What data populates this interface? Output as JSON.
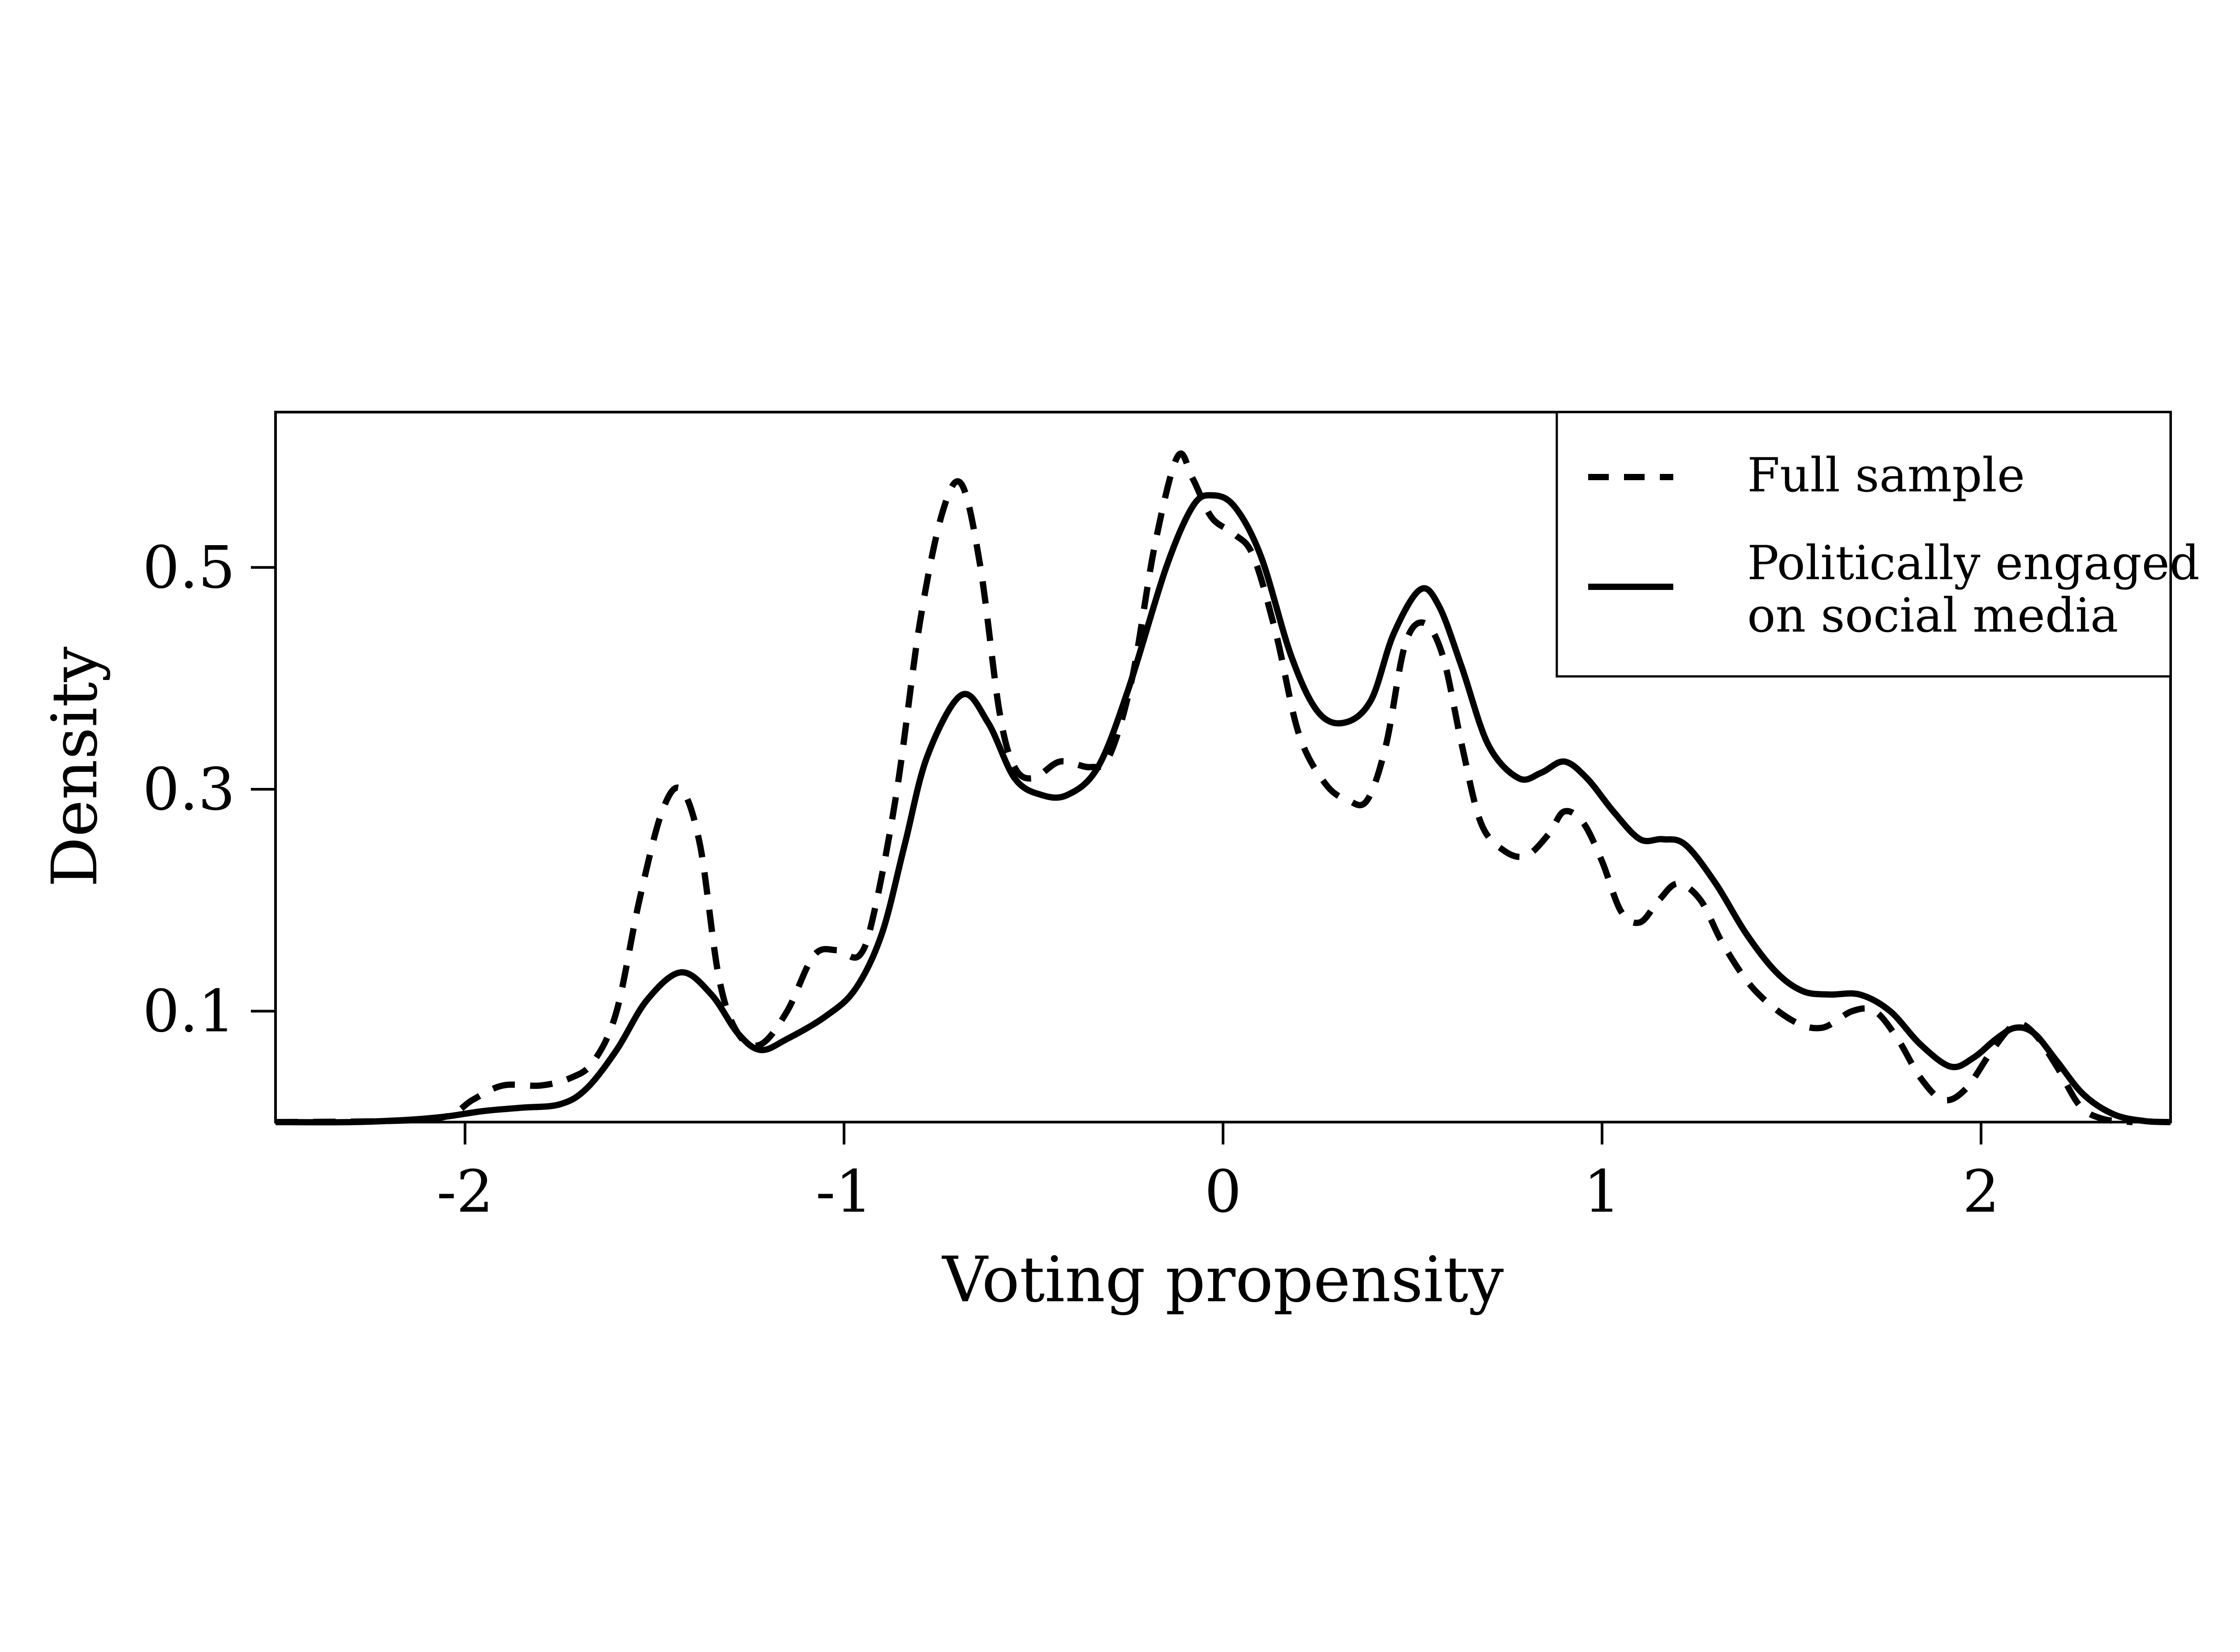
{
  "chart_data": {
    "type": "line",
    "xlabel": "Voting propensity",
    "ylabel": "Density",
    "xlim": [
      -2.5,
      2.5
    ],
    "ylim": [
      0.0,
      0.64
    ],
    "xticks": [
      -2,
      -1,
      0,
      1,
      2
    ],
    "xtick_labels": [
      "-2",
      "-1",
      "0",
      "1",
      "2"
    ],
    "yticks": [
      0.1,
      0.3,
      0.5
    ],
    "ytick_labels": [
      "0.1",
      "0.3",
      "0.5"
    ],
    "grid": false,
    "legend_position": "top-right",
    "series": [
      {
        "name": "Full sample",
        "style": "dashed",
        "color": "#000000",
        "points": [
          [
            -2.5,
            0.0
          ],
          [
            -2.2,
            0.001
          ],
          [
            -2.05,
            0.005
          ],
          [
            -1.98,
            0.02
          ],
          [
            -1.9,
            0.033
          ],
          [
            -1.8,
            0.033
          ],
          [
            -1.72,
            0.04
          ],
          [
            -1.66,
            0.055
          ],
          [
            -1.6,
            0.1
          ],
          [
            -1.54,
            0.2
          ],
          [
            -1.48,
            0.28
          ],
          [
            -1.43,
            0.3
          ],
          [
            -1.38,
            0.25
          ],
          [
            -1.33,
            0.13
          ],
          [
            -1.28,
            0.08
          ],
          [
            -1.22,
            0.07
          ],
          [
            -1.15,
            0.1
          ],
          [
            -1.08,
            0.15
          ],
          [
            -1.02,
            0.155
          ],
          [
            -0.96,
            0.15
          ],
          [
            -0.92,
            0.19
          ],
          [
            -0.86,
            0.3
          ],
          [
            -0.8,
            0.45
          ],
          [
            -0.74,
            0.55
          ],
          [
            -0.69,
            0.575
          ],
          [
            -0.64,
            0.5
          ],
          [
            -0.59,
            0.37
          ],
          [
            -0.55,
            0.32
          ],
          [
            -0.5,
            0.31
          ],
          [
            -0.43,
            0.325
          ],
          [
            -0.35,
            0.32
          ],
          [
            -0.3,
            0.33
          ],
          [
            -0.24,
            0.4
          ],
          [
            -0.18,
            0.52
          ],
          [
            -0.12,
            0.6
          ],
          [
            -0.08,
            0.58
          ],
          [
            -0.03,
            0.545
          ],
          [
            0.03,
            0.53
          ],
          [
            0.08,
            0.51
          ],
          [
            0.14,
            0.44
          ],
          [
            0.2,
            0.35
          ],
          [
            0.27,
            0.305
          ],
          [
            0.33,
            0.29
          ],
          [
            0.38,
            0.29
          ],
          [
            0.43,
            0.34
          ],
          [
            0.48,
            0.43
          ],
          [
            0.53,
            0.45
          ],
          [
            0.58,
            0.42
          ],
          [
            0.63,
            0.34
          ],
          [
            0.68,
            0.27
          ],
          [
            0.74,
            0.245
          ],
          [
            0.8,
            0.24
          ],
          [
            0.86,
            0.26
          ],
          [
            0.9,
            0.28
          ],
          [
            0.95,
            0.27
          ],
          [
            1.0,
            0.235
          ],
          [
            1.05,
            0.19
          ],
          [
            1.1,
            0.18
          ],
          [
            1.15,
            0.2
          ],
          [
            1.2,
            0.215
          ],
          [
            1.26,
            0.2
          ],
          [
            1.32,
            0.16
          ],
          [
            1.4,
            0.12
          ],
          [
            1.5,
            0.092
          ],
          [
            1.58,
            0.085
          ],
          [
            1.66,
            0.1
          ],
          [
            1.72,
            0.1
          ],
          [
            1.78,
            0.075
          ],
          [
            1.84,
            0.04
          ],
          [
            1.9,
            0.02
          ],
          [
            1.96,
            0.03
          ],
          [
            2.03,
            0.065
          ],
          [
            2.09,
            0.088
          ],
          [
            2.14,
            0.08
          ],
          [
            2.2,
            0.05
          ],
          [
            2.26,
            0.015
          ],
          [
            2.32,
            0.003
          ],
          [
            2.4,
            0.0
          ]
        ]
      },
      {
        "name": "Politically engaged\non social media",
        "style": "solid",
        "color": "#000000",
        "points": [
          [
            -2.5,
            0.0
          ],
          [
            -2.3,
            0.0
          ],
          [
            -2.15,
            0.002
          ],
          [
            -2.05,
            0.005
          ],
          [
            -1.95,
            0.01
          ],
          [
            -1.85,
            0.013
          ],
          [
            -1.75,
            0.016
          ],
          [
            -1.68,
            0.03
          ],
          [
            -1.6,
            0.065
          ],
          [
            -1.52,
            0.11
          ],
          [
            -1.43,
            0.135
          ],
          [
            -1.35,
            0.115
          ],
          [
            -1.28,
            0.08
          ],
          [
            -1.22,
            0.065
          ],
          [
            -1.15,
            0.075
          ],
          [
            -1.05,
            0.095
          ],
          [
            -0.97,
            0.12
          ],
          [
            -0.9,
            0.17
          ],
          [
            -0.84,
            0.25
          ],
          [
            -0.78,
            0.33
          ],
          [
            -0.69,
            0.385
          ],
          [
            -0.62,
            0.36
          ],
          [
            -0.55,
            0.31
          ],
          [
            -0.48,
            0.295
          ],
          [
            -0.41,
            0.295
          ],
          [
            -0.33,
            0.32
          ],
          [
            -0.25,
            0.39
          ],
          [
            -0.15,
            0.5
          ],
          [
            -0.08,
            0.555
          ],
          [
            -0.03,
            0.565
          ],
          [
            0.03,
            0.555
          ],
          [
            0.1,
            0.51
          ],
          [
            0.18,
            0.42
          ],
          [
            0.25,
            0.37
          ],
          [
            0.32,
            0.36
          ],
          [
            0.39,
            0.38
          ],
          [
            0.45,
            0.44
          ],
          [
            0.52,
            0.48
          ],
          [
            0.57,
            0.465
          ],
          [
            0.63,
            0.41
          ],
          [
            0.7,
            0.34
          ],
          [
            0.78,
            0.31
          ],
          [
            0.84,
            0.315
          ],
          [
            0.9,
            0.325
          ],
          [
            0.96,
            0.31
          ],
          [
            1.03,
            0.28
          ],
          [
            1.1,
            0.255
          ],
          [
            1.16,
            0.255
          ],
          [
            1.22,
            0.25
          ],
          [
            1.3,
            0.215
          ],
          [
            1.38,
            0.17
          ],
          [
            1.46,
            0.135
          ],
          [
            1.53,
            0.118
          ],
          [
            1.6,
            0.115
          ],
          [
            1.68,
            0.115
          ],
          [
            1.76,
            0.1
          ],
          [
            1.84,
            0.07
          ],
          [
            1.92,
            0.05
          ],
          [
            1.98,
            0.058
          ],
          [
            2.04,
            0.075
          ],
          [
            2.09,
            0.085
          ],
          [
            2.14,
            0.08
          ],
          [
            2.2,
            0.055
          ],
          [
            2.27,
            0.025
          ],
          [
            2.35,
            0.007
          ],
          [
            2.43,
            0.001
          ],
          [
            2.5,
            0.0
          ]
        ]
      }
    ]
  }
}
